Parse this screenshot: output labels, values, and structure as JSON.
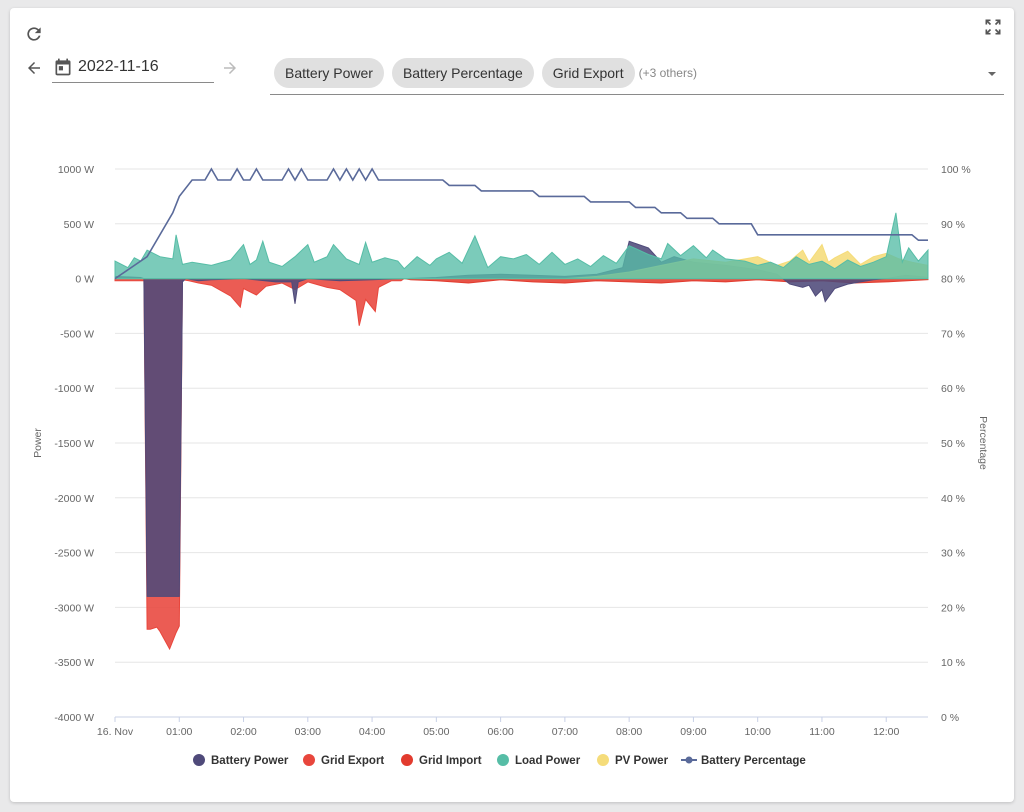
{
  "toolbar": {
    "refresh_icon": "refresh-icon",
    "fullscreen_icon": "fullscreen-icon",
    "prev_icon": "arrow-left-icon",
    "next_icon": "arrow-right-icon",
    "calendar_icon": "calendar-icon",
    "date_value": "2022-11-16",
    "selected_series": [
      "Battery Power",
      "Battery Percentage",
      "Grid Export"
    ],
    "others_label": "(+3 others)",
    "dropdown_icon": "caret-down-icon"
  },
  "colors": {
    "battery_power": "#4f4a7a",
    "grid_export": "#e8463c",
    "grid_import": "#e23b2e",
    "load_power": "#56bda6",
    "pv_power": "#f5dc7a",
    "battery_percentage": "#5a6a9a",
    "grid": "#e6e6e6"
  },
  "chart_data": {
    "type": "area",
    "x_tick_labels": [
      "16. Nov",
      "01:00",
      "02:00",
      "03:00",
      "04:00",
      "05:00",
      "06:00",
      "07:00",
      "08:00",
      "09:00",
      "10:00",
      "11:00",
      "12:00"
    ],
    "x_ticks_hours": [
      0,
      1,
      2,
      3,
      4,
      5,
      6,
      7,
      8,
      9,
      10,
      11,
      12
    ],
    "xlim_hours": [
      0,
      12.65
    ],
    "y_left": {
      "label": "Power",
      "ylim": [
        -4000,
        1000
      ],
      "ticks": [
        1000,
        500,
        0,
        -500,
        -1000,
        -1500,
        -2000,
        -2500,
        -3000,
        -3500,
        -4000
      ],
      "tick_labels": [
        "1000 W",
        "500 W",
        "0 W",
        "-500 W",
        "-1000 W",
        "-1500 W",
        "-2000 W",
        "-2500 W",
        "-3000 W",
        "-3500 W",
        "-4000 W"
      ]
    },
    "y_right": {
      "label": "Percentage",
      "ylim": [
        0,
        100
      ],
      "ticks": [
        100,
        90,
        80,
        70,
        60,
        50,
        40,
        30,
        20,
        10,
        0
      ],
      "tick_labels": [
        "100 %",
        "90 %",
        "80 %",
        "70 %",
        "60 %",
        "50 %",
        "40 %",
        "30 %",
        "20 %",
        "10 %",
        "0 %"
      ]
    },
    "grid": true,
    "legend_position": "bottom",
    "series": [
      {
        "name": "Battery Power",
        "key": "battery_power",
        "axis": "left",
        "kind": "area",
        "x": [
          0.0,
          0.4,
          0.45,
          0.5,
          1.0,
          1.05,
          1.1,
          1.3,
          1.5,
          2.0,
          2.5,
          2.75,
          2.8,
          2.85,
          3.0,
          3.5,
          4.0,
          4.5,
          5.0,
          5.5,
          6.0,
          6.5,
          7.0,
          7.5,
          7.9,
          8.0,
          8.3,
          8.5,
          8.7,
          9.0,
          9.5,
          10.0,
          10.3,
          10.5,
          10.7,
          10.8,
          10.9,
          11.0,
          11.05,
          11.2,
          11.4,
          11.6,
          11.8,
          12.0,
          12.3,
          12.5,
          12.65
        ],
        "y": [
          20,
          10,
          0,
          -2900,
          -2900,
          -30,
          0,
          -20,
          -10,
          0,
          -30,
          -30,
          -230,
          -30,
          0,
          -20,
          -10,
          0,
          10,
          30,
          40,
          30,
          20,
          40,
          100,
          340,
          280,
          150,
          200,
          150,
          120,
          80,
          40,
          -50,
          -80,
          -60,
          -160,
          -100,
          -210,
          -90,
          -50,
          -30,
          -10,
          0,
          30,
          20,
          10
        ]
      },
      {
        "name": "Grid Export",
        "key": "grid_export",
        "axis": "left",
        "kind": "area",
        "x": [
          0.0,
          0.45,
          0.5,
          0.55,
          0.65,
          0.7,
          0.85,
          0.95,
          1.0,
          1.05,
          1.15,
          1.3,
          1.5,
          1.8,
          1.95,
          2.0,
          2.2,
          2.35,
          2.6,
          2.8,
          3.0,
          3.3,
          3.5,
          3.75,
          3.8,
          3.9,
          4.05,
          4.1,
          4.3,
          4.45,
          4.5,
          5.0,
          6.0,
          7.0,
          8.0,
          9.0,
          10.0,
          11.0,
          12.0,
          12.65
        ],
        "y": [
          -20,
          -20,
          -3200,
          -3200,
          -3180,
          -3220,
          -3380,
          -3230,
          -3170,
          -10,
          -20,
          -40,
          -60,
          -160,
          -260,
          -90,
          -150,
          -70,
          -40,
          -100,
          -30,
          -80,
          -100,
          -200,
          -430,
          -190,
          -300,
          -80,
          -20,
          -20,
          0,
          0,
          0,
          0,
          0,
          0,
          0,
          0,
          0,
          0
        ]
      },
      {
        "name": "Grid Import",
        "key": "grid_import",
        "axis": "left",
        "kind": "area",
        "x": [
          0.0,
          0.5,
          1.0,
          1.5,
          2.0,
          3.0,
          4.0,
          4.5,
          4.6,
          5.0,
          5.5,
          6.0,
          6.5,
          7.0,
          7.5,
          8.0,
          8.5,
          9.0,
          9.5,
          10.0,
          10.5,
          11.0,
          11.5,
          12.0,
          12.65
        ],
        "y": [
          0,
          0,
          0,
          0,
          0,
          0,
          0,
          0,
          -10,
          -20,
          -40,
          -10,
          -30,
          -40,
          -20,
          -30,
          -40,
          -20,
          -30,
          -10,
          -30,
          -20,
          -40,
          -30,
          -10
        ]
      },
      {
        "name": "Load Power",
        "key": "load_power",
        "axis": "left",
        "kind": "area",
        "x": [
          0.0,
          0.2,
          0.3,
          0.4,
          0.5,
          0.7,
          0.9,
          0.95,
          1.05,
          1.2,
          1.5,
          1.8,
          2.0,
          2.1,
          2.2,
          2.3,
          2.4,
          2.6,
          2.8,
          3.0,
          3.1,
          3.3,
          3.4,
          3.6,
          3.8,
          3.9,
          4.0,
          4.2,
          4.4,
          4.5,
          4.7,
          4.9,
          5.0,
          5.2,
          5.4,
          5.6,
          5.8,
          6.0,
          6.2,
          6.4,
          6.6,
          6.8,
          7.0,
          7.2,
          7.4,
          7.6,
          7.8,
          8.0,
          8.3,
          8.5,
          8.6,
          8.8,
          9.0,
          9.2,
          9.3,
          9.5,
          9.8,
          10.0,
          10.2,
          10.4,
          10.6,
          10.8,
          11.0,
          11.2,
          11.4,
          11.6,
          11.8,
          12.0,
          12.15,
          12.25,
          12.35,
          12.5,
          12.65
        ],
        "y": [
          160,
          100,
          190,
          160,
          260,
          200,
          180,
          400,
          130,
          150,
          120,
          170,
          310,
          130,
          170,
          340,
          150,
          110,
          200,
          310,
          150,
          200,
          310,
          180,
          130,
          330,
          150,
          190,
          160,
          90,
          200,
          120,
          180,
          240,
          140,
          390,
          100,
          200,
          180,
          220,
          130,
          240,
          130,
          180,
          110,
          210,
          140,
          300,
          220,
          180,
          320,
          210,
          300,
          190,
          260,
          180,
          160,
          120,
          150,
          100,
          200,
          130,
          160,
          90,
          170,
          110,
          150,
          200,
          600,
          150,
          280,
          160,
          260
        ]
      },
      {
        "name": "PV Power",
        "key": "pv_power",
        "axis": "left",
        "kind": "area",
        "x": [
          0.0,
          7.0,
          7.5,
          8.0,
          8.5,
          9.0,
          9.5,
          10.0,
          10.3,
          10.5,
          10.7,
          10.8,
          10.9,
          11.0,
          11.1,
          11.2,
          11.4,
          11.6,
          11.8,
          12.0,
          12.2,
          12.4,
          12.65
        ],
        "y": [
          0,
          0,
          20,
          60,
          120,
          180,
          150,
          200,
          120,
          160,
          260,
          150,
          230,
          310,
          150,
          190,
          250,
          130,
          200,
          230,
          180,
          150,
          120
        ]
      },
      {
        "name": "Battery Percentage",
        "key": "battery_percentage",
        "axis": "right",
        "kind": "line",
        "x": [
          0.0,
          0.5,
          0.9,
          1.0,
          1.2,
          1.4,
          1.5,
          1.6,
          1.8,
          1.9,
          2.0,
          2.1,
          2.2,
          2.3,
          2.6,
          2.7,
          2.8,
          2.9,
          3.0,
          3.3,
          3.4,
          3.5,
          3.6,
          3.7,
          3.8,
          3.9,
          4.0,
          4.1,
          4.2,
          5.1,
          5.2,
          5.6,
          5.7,
          6.5,
          6.6,
          7.3,
          7.4,
          8.0,
          8.1,
          8.4,
          8.5,
          8.8,
          8.9,
          9.3,
          9.4,
          9.9,
          10.0,
          12.4,
          12.5,
          12.65
        ],
        "y": [
          80,
          84,
          92,
          95,
          98,
          98,
          100,
          98,
          98,
          100,
          98,
          98,
          100,
          98,
          98,
          100,
          98,
          100,
          98,
          98,
          100,
          98,
          100,
          98,
          100,
          98,
          100,
          98,
          98,
          98,
          97,
          97,
          96,
          96,
          95,
          95,
          94,
          94,
          93,
          93,
          92,
          92,
          91,
          91,
          90,
          90,
          88,
          88,
          87,
          87
        ]
      }
    ]
  }
}
